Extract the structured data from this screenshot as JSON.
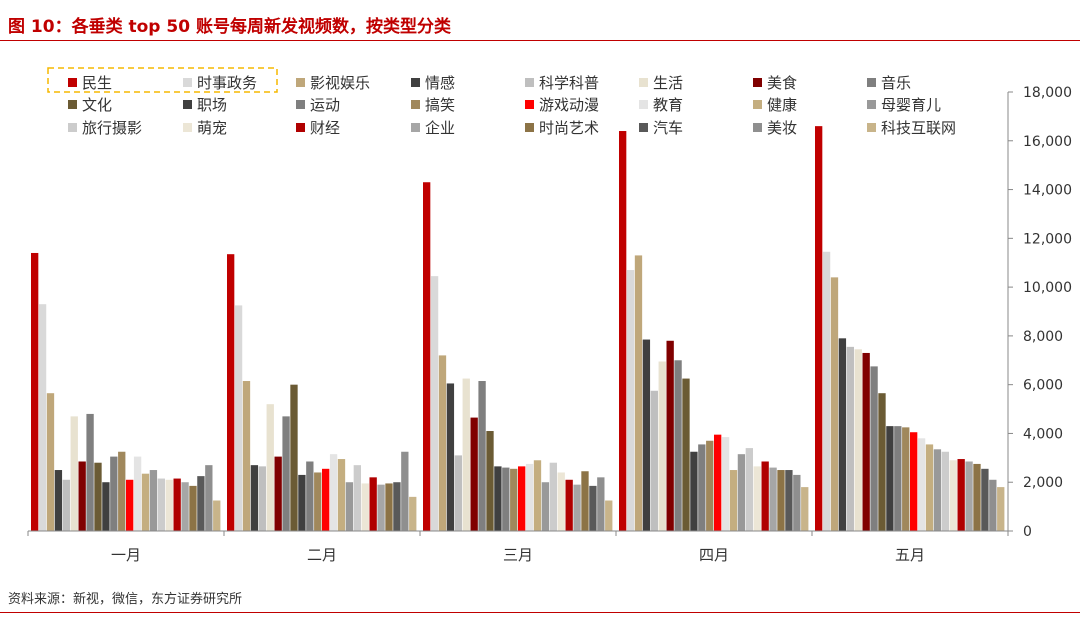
{
  "figure_title": "图 10：各垂类 top 50 账号每周新发视频数，按类型分类",
  "source_note": "资料来源：新视，微信，东方证券研究所",
  "chart_data": {
    "type": "bar",
    "categories": [
      "一月",
      "二月",
      "三月",
      "四月",
      "五月"
    ],
    "y_axis_side": "right",
    "ylim": [
      0,
      18000
    ],
    "yticks": [
      0,
      2000,
      4000,
      6000,
      8000,
      10000,
      12000,
      14000,
      16000,
      18000
    ],
    "ytick_labels": [
      "0",
      "2,000",
      "4,000",
      "6,000",
      "8,000",
      "10,000",
      "12,000",
      "14,000",
      "16,000",
      "18,000"
    ],
    "grid": false,
    "legend_position": "top",
    "highlighted_legend_entry": "民生",
    "series": [
      {
        "name": "民生",
        "color": "#c00000",
        "values": [
          11400,
          11350,
          14300,
          16400,
          16600
        ]
      },
      {
        "name": "时事政务",
        "color": "#d9d9d9",
        "values": [
          9300,
          9250,
          10450,
          10700,
          11450
        ]
      },
      {
        "name": "影视娱乐",
        "color": "#bfa77a",
        "values": [
          5650,
          6150,
          7200,
          11300,
          10400
        ]
      },
      {
        "name": "情感",
        "color": "#404040",
        "values": [
          2500,
          2700,
          6050,
          7850,
          7900
        ]
      },
      {
        "name": "科学科普",
        "color": "#bfbfbf",
        "values": [
          2100,
          2650,
          3100,
          5750,
          7550
        ]
      },
      {
        "name": "生活",
        "color": "#e8e2d0",
        "values": [
          4700,
          5200,
          6250,
          6950,
          7450
        ]
      },
      {
        "name": "美食",
        "color": "#800000",
        "values": [
          2850,
          3050,
          4650,
          7800,
          7300
        ]
      },
      {
        "name": "音乐",
        "color": "#7f7f7f",
        "values": [
          4800,
          4700,
          6150,
          7000,
          6750
        ]
      },
      {
        "name": "文化",
        "color": "#6b5b34",
        "values": [
          2800,
          6000,
          4100,
          6250,
          5650
        ]
      },
      {
        "name": "职场",
        "color": "#404040",
        "values": [
          2000,
          2300,
          2650,
          3250,
          4300
        ]
      },
      {
        "name": "运动",
        "color": "#7f7f7f",
        "values": [
          3050,
          2850,
          2600,
          3550,
          4300
        ]
      },
      {
        "name": "搞笑",
        "color": "#a0885c",
        "values": [
          3250,
          2400,
          2550,
          3700,
          4250
        ]
      },
      {
        "name": "游戏动漫",
        "color": "#ff0000",
        "values": [
          2100,
          2550,
          2650,
          3950,
          4050
        ]
      },
      {
        "name": "教育",
        "color": "#e4e4e4",
        "values": [
          3050,
          3150,
          2750,
          3850,
          3800
        ]
      },
      {
        "name": "健康",
        "color": "#c4ae80",
        "values": [
          2350,
          2950,
          2900,
          2500,
          3550
        ]
      },
      {
        "name": "母婴育儿",
        "color": "#999999",
        "values": [
          2500,
          2000,
          2000,
          3150,
          3350
        ]
      },
      {
        "name": "旅行摄影",
        "color": "#cccccc",
        "values": [
          2150,
          2700,
          2800,
          3400,
          3250
        ]
      },
      {
        "name": "萌宠",
        "color": "#ece6d6",
        "values": [
          2100,
          1950,
          2400,
          2650,
          2900
        ]
      },
      {
        "name": "财经",
        "color": "#b00000",
        "values": [
          2150,
          2200,
          2100,
          2850,
          2950
        ]
      },
      {
        "name": "企业",
        "color": "#a6a6a6",
        "values": [
          2000,
          1900,
          1900,
          2600,
          2850
        ]
      },
      {
        "name": "时尚艺术",
        "color": "#8c7346",
        "values": [
          1850,
          1950,
          2450,
          2500,
          2750
        ]
      },
      {
        "name": "汽车",
        "color": "#595959",
        "values": [
          2250,
          2000,
          1850,
          2500,
          2550
        ]
      },
      {
        "name": "美妆",
        "color": "#8f8f8f",
        "values": [
          2700,
          3250,
          2200,
          2300,
          2100
        ]
      },
      {
        "name": "科技互联网",
        "color": "#c8b48a",
        "values": [
          1250,
          1400,
          1250,
          1800,
          1800
        ]
      }
    ]
  }
}
